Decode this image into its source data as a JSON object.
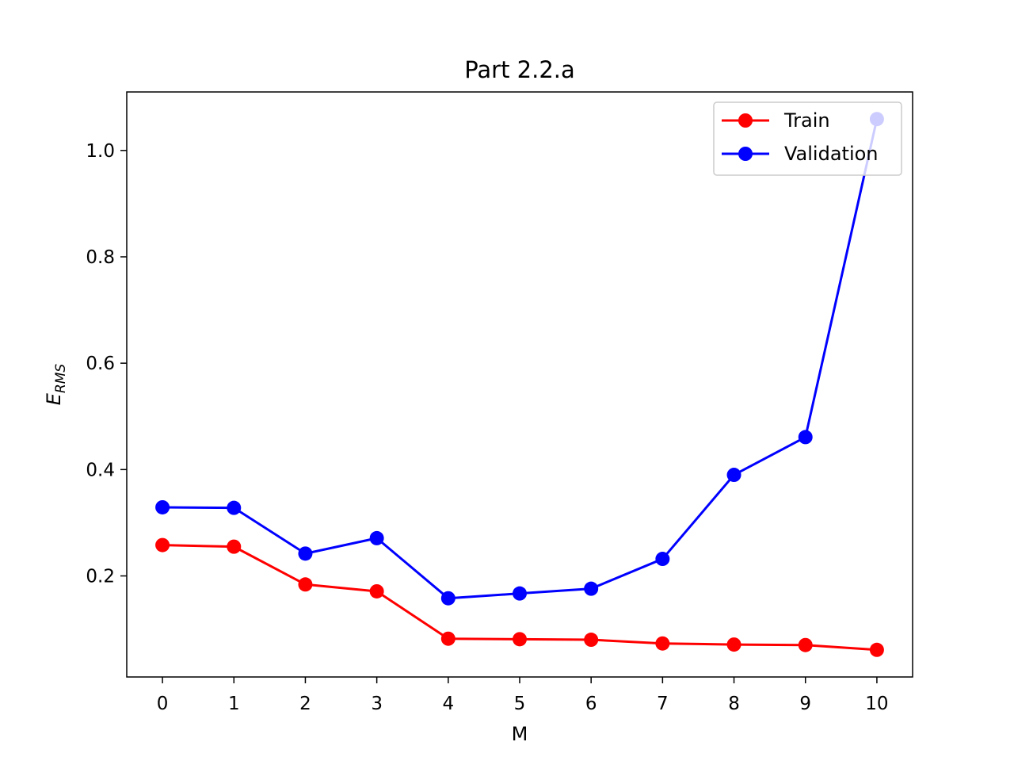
{
  "chart_data": {
    "type": "line",
    "title": "Part 2.2.a",
    "xlabel": "M",
    "ylabel": {
      "main": "E",
      "sub": "RMS"
    },
    "x": [
      0,
      1,
      2,
      3,
      4,
      5,
      6,
      7,
      8,
      9,
      10
    ],
    "x_ticks": [
      "0",
      "1",
      "2",
      "3",
      "4",
      "5",
      "6",
      "7",
      "8",
      "9",
      "10"
    ],
    "y_ticks": [
      {
        "value": 0.2,
        "label": "0.2"
      },
      {
        "value": 0.4,
        "label": "0.4"
      },
      {
        "value": 0.6,
        "label": "0.6"
      },
      {
        "value": 0.8,
        "label": "0.8"
      },
      {
        "value": 1.0,
        "label": "1.0"
      }
    ],
    "xlim": [
      -0.5,
      10.5
    ],
    "ylim": [
      0.01,
      1.11
    ],
    "grid": false,
    "legend_position": "top-right",
    "series": [
      {
        "name": "Train",
        "color": "#ff0000",
        "marker": "circle",
        "values": [
          0.258,
          0.255,
          0.184,
          0.171,
          0.082,
          0.081,
          0.08,
          0.073,
          0.071,
          0.07,
          0.061
        ]
      },
      {
        "name": "Validation",
        "color": "#0000ff",
        "marker": "circle",
        "values": [
          0.329,
          0.328,
          0.242,
          0.271,
          0.158,
          0.167,
          0.176,
          0.232,
          0.39,
          0.461,
          1.059
        ]
      }
    ]
  }
}
